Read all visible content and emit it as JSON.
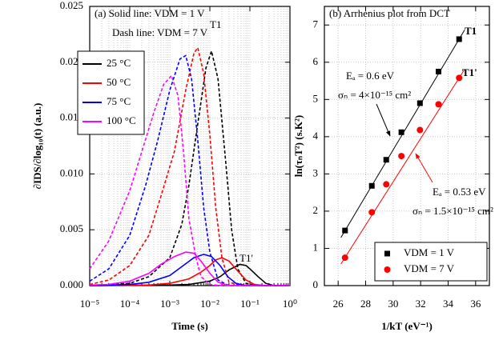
{
  "chart_data": [
    {
      "type": "line",
      "x_label": "Time (s)",
      "y_label": "∂IDS/∂log₁₀(t) (a.u.)",
      "annotations": [
        "(a) Solid line:  VDM = 1 V",
        "Dash line:  VDM = 7 V",
        "T1",
        "T1'"
      ],
      "xscale": "log",
      "xlim": [
        1e-05,
        1
      ],
      "xticks": [
        {
          "value": 1e-05,
          "label": "10⁻⁵"
        },
        {
          "value": 0.0001,
          "label": "10⁻⁴"
        },
        {
          "value": 0.001,
          "label": "10⁻³"
        },
        {
          "value": 0.01,
          "label": "10⁻²"
        },
        {
          "value": 0.1,
          "label": "10⁻¹"
        },
        {
          "value": 1,
          "label": "10⁰"
        }
      ],
      "ylim": [
        0,
        0.025
      ],
      "yticks": [
        {
          "value": 0,
          "label": "0.000"
        },
        {
          "value": 0.005,
          "label": "0.005"
        },
        {
          "value": 0.01,
          "label": "0.010"
        },
        {
          "value": 0.015,
          "label": "0.015"
        },
        {
          "value": 0.02,
          "label": "0.020"
        },
        {
          "value": 0.025,
          "label": "0.025"
        }
      ],
      "grid": true,
      "legend": "upper left",
      "series": [
        {
          "name": "25 °C",
          "color": "#000000",
          "lines": [
            {
              "style": "solid",
              "x": [
                1e-05,
                0.001,
                0.003,
                0.01,
                0.018,
                0.03,
                0.056,
                0.08,
                0.1,
                0.16,
                0.25,
                0.4,
                1
              ],
              "values": [
                0,
                5e-05,
                0.0001,
                0.0004,
                0.0008,
                0.0014,
                0.0019,
                0.0018,
                0.0015,
                0.0008,
                0.0002,
                0,
                0
              ]
            },
            {
              "style": "dashed",
              "x": [
                1e-05,
                0.0001,
                0.0003,
                0.001,
                0.002,
                0.003,
                0.005,
                0.008,
                0.011,
                0.016,
                0.025,
                0.035,
                0.05,
                0.08,
                0.16,
                1
              ],
              "values": [
                0,
                0.0002,
                0.0008,
                0.0025,
                0.0055,
                0.009,
                0.0145,
                0.0195,
                0.021,
                0.0185,
                0.011,
                0.005,
                0.0015,
                0.0002,
                0,
                0
              ]
            }
          ]
        },
        {
          "name": "50 °C",
          "color": "#ff0000",
          "lines": [
            {
              "style": "solid",
              "x": [
                1e-05,
                0.0003,
                0.001,
                0.003,
                0.006,
                0.01,
                0.014,
                0.02,
                0.03,
                0.05,
                0.08,
                0.13,
                0.25,
                1
              ],
              "values": [
                0,
                5e-05,
                0.0002,
                0.0006,
                0.0012,
                0.0018,
                0.0023,
                0.0025,
                0.0022,
                0.0013,
                0.0005,
                0.0001,
                0,
                0
              ]
            },
            {
              "style": "dashed",
              "x": [
                1e-05,
                3e-05,
                0.0001,
                0.0003,
                0.0006,
                0.0013,
                0.0025,
                0.004,
                0.005,
                0.007,
                0.01,
                0.014,
                0.02,
                0.03,
                0.063,
                1
              ],
              "values": [
                0.0001,
                0.0005,
                0.0018,
                0.0045,
                0.008,
                0.012,
                0.0175,
                0.0208,
                0.0213,
                0.019,
                0.0135,
                0.007,
                0.0025,
                0.0003,
                0,
                0
              ]
            }
          ]
        },
        {
          "name": "75 °C",
          "color": "#0000ff",
          "lines": [
            {
              "style": "solid",
              "x": [
                1e-05,
                0.0001,
                0.0003,
                0.001,
                0.002,
                0.004,
                0.007,
                0.011,
                0.018,
                0.028,
                0.045,
                0.08,
                1
              ],
              "values": [
                0,
                0.0001,
                0.0003,
                0.0009,
                0.0017,
                0.0025,
                0.0028,
                0.0026,
                0.0018,
                0.0008,
                0.0002,
                0,
                0
              ]
            },
            {
              "style": "dashed",
              "x": [
                1e-05,
                3e-05,
                0.0001,
                0.00025,
                0.0005,
                0.001,
                0.0018,
                0.0025,
                0.0035,
                0.005,
                0.007,
                0.01,
                0.016,
                0.03,
                1
              ],
              "values": [
                0.0004,
                0.0015,
                0.0045,
                0.009,
                0.013,
                0.0175,
                0.0203,
                0.0206,
                0.0185,
                0.013,
                0.007,
                0.003,
                0.0005,
                0,
                0
              ]
            }
          ]
        },
        {
          "name": "100 °C",
          "color": "#ff00ff",
          "lines": [
            {
              "style": "solid",
              "x": [
                1e-05,
                3e-05,
                0.0001,
                0.0003,
                0.0006,
                0.0013,
                0.0025,
                0.004,
                0.006,
                0.01,
                0.016,
                0.03,
                1
              ],
              "values": [
                5e-05,
                0.0001,
                0.0004,
                0.0011,
                0.0019,
                0.0026,
                0.003,
                0.0029,
                0.0022,
                0.0011,
                0.0003,
                0,
                0
              ]
            },
            {
              "style": "dashed",
              "x": [
                1e-05,
                3e-05,
                0.0001,
                0.0002,
                0.0004,
                0.0007,
                0.0011,
                0.0016,
                0.0022,
                0.003,
                0.0045,
                0.006,
                0.01,
                0.02,
                1
              ],
              "values": [
                0.0015,
                0.004,
                0.0085,
                0.012,
                0.0155,
                0.018,
                0.0188,
                0.017,
                0.012,
                0.006,
                0.0025,
                0.0008,
                0.0001,
                0,
                0
              ]
            }
          ]
        }
      ]
    },
    {
      "type": "scatter",
      "x_label": "1/kT (eV⁻¹)",
      "y_label": "ln(τₙT²) (s.K²)",
      "annotations": [
        "(b) Arrhenius plot from DCT",
        "T1",
        "T1'",
        "Eₐ = 0.6 eV",
        "σₙ = 4×10⁻¹⁵ cm²",
        "Eₐ = 0.53 eV",
        "σₙ = 1.5×10⁻¹⁵ cm²"
      ],
      "xlim": [
        25,
        37
      ],
      "xticks": [
        26,
        28,
        30,
        32,
        34,
        36
      ],
      "ylim": [
        0,
        7.5
      ],
      "yticks": [
        0,
        1,
        2,
        3,
        4,
        5,
        6,
        7
      ],
      "grid": true,
      "legend": "lower right",
      "series": [
        {
          "name": "VDM = 1 V",
          "color": "#000000",
          "marker": "square",
          "x": [
            26.5,
            28.45,
            29.5,
            30.6,
            31.95,
            33.3,
            34.8
          ],
          "values": [
            1.48,
            2.68,
            3.38,
            4.12,
            4.9,
            5.75,
            6.62
          ],
          "fit": {
            "x": [
              26.2,
              35.2
            ],
            "values": [
              1.29,
              6.87
            ]
          }
        },
        {
          "name": "VDM = 7 V",
          "color": "#ff0000",
          "marker": "circle",
          "x": [
            26.5,
            28.45,
            29.5,
            30.6,
            31.95,
            33.3,
            34.8
          ],
          "values": [
            0.75,
            1.97,
            2.72,
            3.48,
            4.18,
            4.87,
            5.58
          ],
          "fit": {
            "x": [
              26.2,
              35.2
            ],
            "values": [
              0.58,
              5.81
            ]
          }
        }
      ]
    }
  ]
}
